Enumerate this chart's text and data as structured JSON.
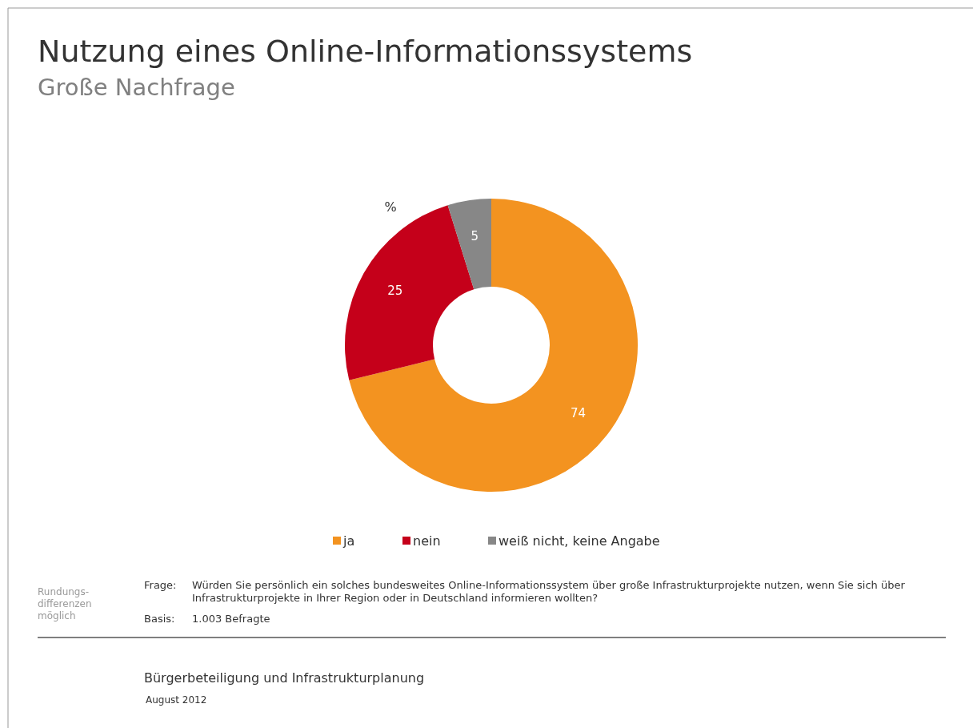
{
  "chart_data": {
    "type": "donut",
    "title": "Nutzung eines Online-Informationssystems",
    "subtitle": "Große Nachfrage",
    "categories": [
      "ja",
      "nein",
      "weiß nicht, keine Angabe"
    ],
    "values": [
      74,
      25,
      5
    ],
    "colors": [
      "#f39320",
      "#c5001a",
      "#878787"
    ],
    "data_labels": true,
    "legend": "bottom",
    "annotations": [
      "%",
      "Rundungs-differenzen möglich",
      "Frage: Würden Sie persönlich ein solches bundesweites Online-Informationssystem über große Infrastrukturprojekte nutzen, wenn Sie sich über Infrastrukturprojekte in Ihrer Region oder in Deutschland informieren wollten?",
      "Basis: 1.003 Befragte",
      "Bürgerbeteiligung und Infrastrukturplanung",
      "August 2012"
    ]
  }
}
